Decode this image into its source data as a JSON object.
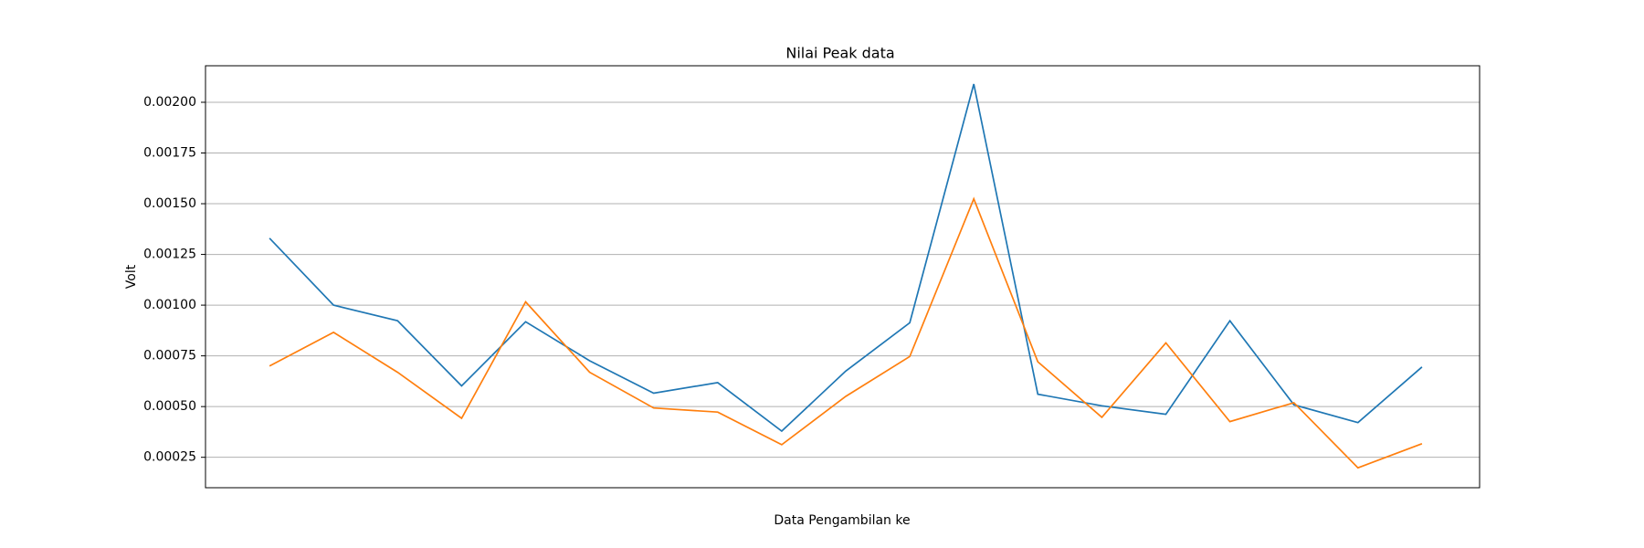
{
  "chart_data": {
    "type": "line",
    "title": "Nilai Peak data",
    "xlabel": "Data Pengambilan ke",
    "ylabel": "Volt",
    "x": [
      1,
      2,
      3,
      4,
      5,
      6,
      7,
      8,
      9,
      10,
      11,
      12,
      13,
      14,
      15,
      16,
      17,
      18,
      19
    ],
    "series": [
      {
        "color": "#1f77b4",
        "values": [
          0.00133,
          0.001,
          0.000923,
          0.000602,
          0.000918,
          0.000726,
          0.000566,
          0.000618,
          0.000379,
          0.000675,
          0.000913,
          0.00209,
          0.000561,
          0.000504,
          0.000462,
          0.000923,
          0.000509,
          0.000421,
          0.000695
        ]
      },
      {
        "color": "#ff7f0e",
        "values": [
          0.0007,
          0.000866,
          0.000669,
          0.000442,
          0.001016,
          0.000669,
          0.000493,
          0.000473,
          0.000312,
          0.00055,
          0.000747,
          0.001524,
          0.000721,
          0.000447,
          0.000814,
          0.000426,
          0.000519,
          0.000198,
          0.000317
        ]
      }
    ],
    "xlim": [
      0,
      19.9
    ],
    "ylim": [
      0.0001,
      0.00218
    ],
    "yticks": [
      0.00025,
      {
        "value": 0.0005,
        "label": "0.00050"
      },
      0.00075,
      {
        "value": 0.001,
        "label": "0.00100"
      },
      0.00125,
      {
        "value": 0.0015,
        "label": "0.00150"
      },
      0.00175,
      {
        "value": 0.002,
        "label": "0.00200"
      }
    ],
    "grid": true
  }
}
